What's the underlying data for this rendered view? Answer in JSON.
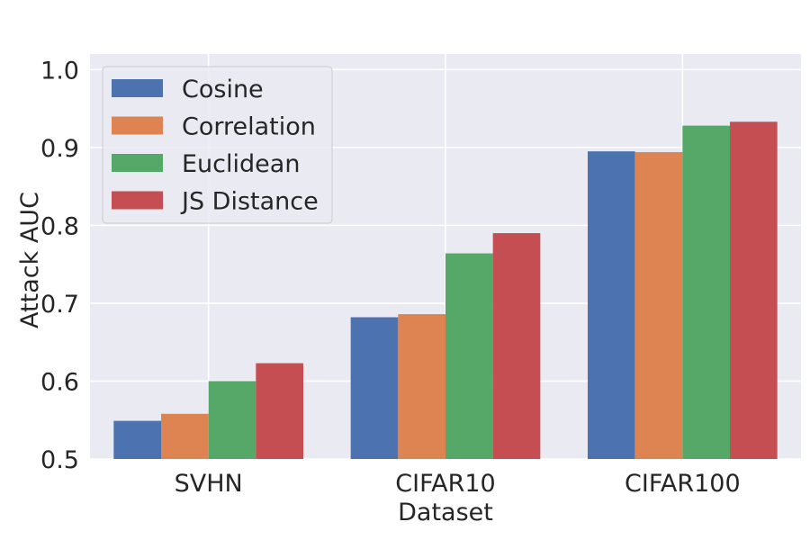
{
  "chart_data": {
    "type": "bar",
    "title": "",
    "xlabel": "Dataset",
    "ylabel": "Attack AUC",
    "categories": [
      "SVHN",
      "CIFAR10",
      "CIFAR100"
    ],
    "series": [
      {
        "name": "Cosine",
        "color": "#4c72b0",
        "values": [
          0.549,
          0.682,
          0.895
        ]
      },
      {
        "name": "Correlation",
        "color": "#dd8452",
        "values": [
          0.558,
          0.686,
          0.894
        ]
      },
      {
        "name": "Euclidean",
        "color": "#55a868",
        "values": [
          0.6,
          0.764,
          0.928
        ]
      },
      {
        "name": "JS Distance",
        "color": "#c44e52",
        "values": [
          0.623,
          0.79,
          0.933
        ]
      }
    ],
    "ylim": [
      0.5,
      1.02
    ],
    "yticks": [
      "0.5",
      "0.6",
      "0.7",
      "0.8",
      "0.9",
      "1.0"
    ],
    "grid": true,
    "legend_position": "top-left",
    "background": "#eaeaf2"
  }
}
